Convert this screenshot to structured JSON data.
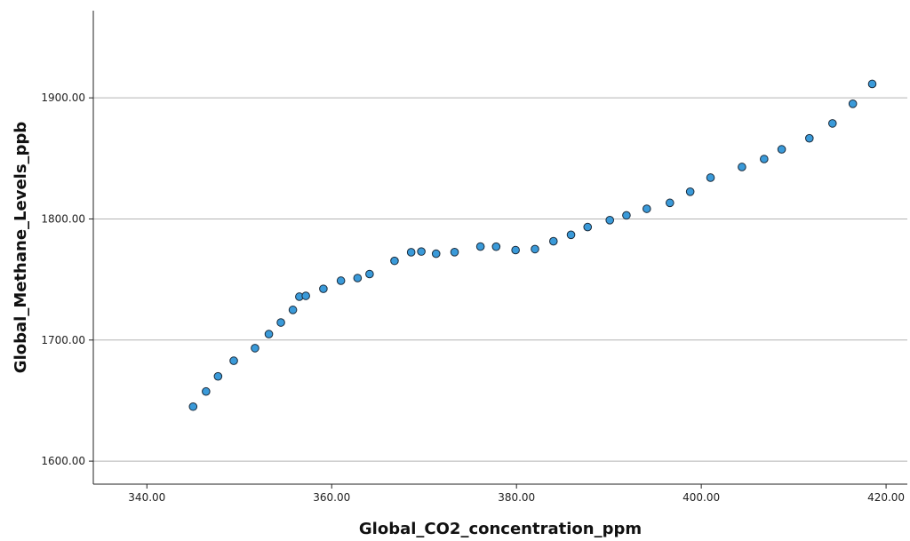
{
  "chart_data": {
    "type": "scatter",
    "xlabel": "Global_CO2_concentration_ppm",
    "ylabel": "Global_Methane_Levels_ppb",
    "xlim": [
      334.2,
      422.3
    ],
    "ylim": [
      1581.0,
      1972.0
    ],
    "x_ticks": [
      "340.00",
      "360.00",
      "380.00",
      "400.00",
      "420.00"
    ],
    "x_tick_values": [
      340,
      360,
      380,
      400,
      420
    ],
    "y_ticks": [
      "1600.00",
      "1700.00",
      "1800.00",
      "1900.00"
    ],
    "y_tick_values": [
      1600,
      1700,
      1800,
      1900
    ],
    "grid": "horizontal",
    "marker_color": "#3a9ad9",
    "marker_edge": "#1a2a3a",
    "points": [
      [
        345.0,
        1645.0
      ],
      [
        346.4,
        1657.5
      ],
      [
        347.7,
        1670.0
      ],
      [
        349.4,
        1682.9
      ],
      [
        351.7,
        1693.3
      ],
      [
        353.2,
        1704.9
      ],
      [
        354.5,
        1714.5
      ],
      [
        355.8,
        1724.9
      ],
      [
        356.5,
        1735.8
      ],
      [
        357.2,
        1736.5
      ],
      [
        359.1,
        1742.3
      ],
      [
        361.0,
        1749.0
      ],
      [
        362.8,
        1751.2
      ],
      [
        364.1,
        1754.5
      ],
      [
        366.8,
        1765.4
      ],
      [
        368.6,
        1772.5
      ],
      [
        369.7,
        1773.1
      ],
      [
        371.3,
        1771.3
      ],
      [
        373.3,
        1772.6
      ],
      [
        376.1,
        1777.2
      ],
      [
        377.8,
        1777.1
      ],
      [
        379.9,
        1774.3
      ],
      [
        382.0,
        1775.1
      ],
      [
        384.0,
        1781.6
      ],
      [
        385.9,
        1786.9
      ],
      [
        387.7,
        1793.3
      ],
      [
        390.1,
        1799.0
      ],
      [
        391.9,
        1803.0
      ],
      [
        394.1,
        1808.4
      ],
      [
        396.6,
        1813.3
      ],
      [
        398.8,
        1822.5
      ],
      [
        401.0,
        1834.1
      ],
      [
        404.4,
        1842.9
      ],
      [
        406.8,
        1849.5
      ],
      [
        408.7,
        1857.5
      ],
      [
        411.7,
        1866.6
      ],
      [
        414.2,
        1878.9
      ],
      [
        416.4,
        1895.1
      ],
      [
        418.5,
        1911.5
      ]
    ]
  }
}
